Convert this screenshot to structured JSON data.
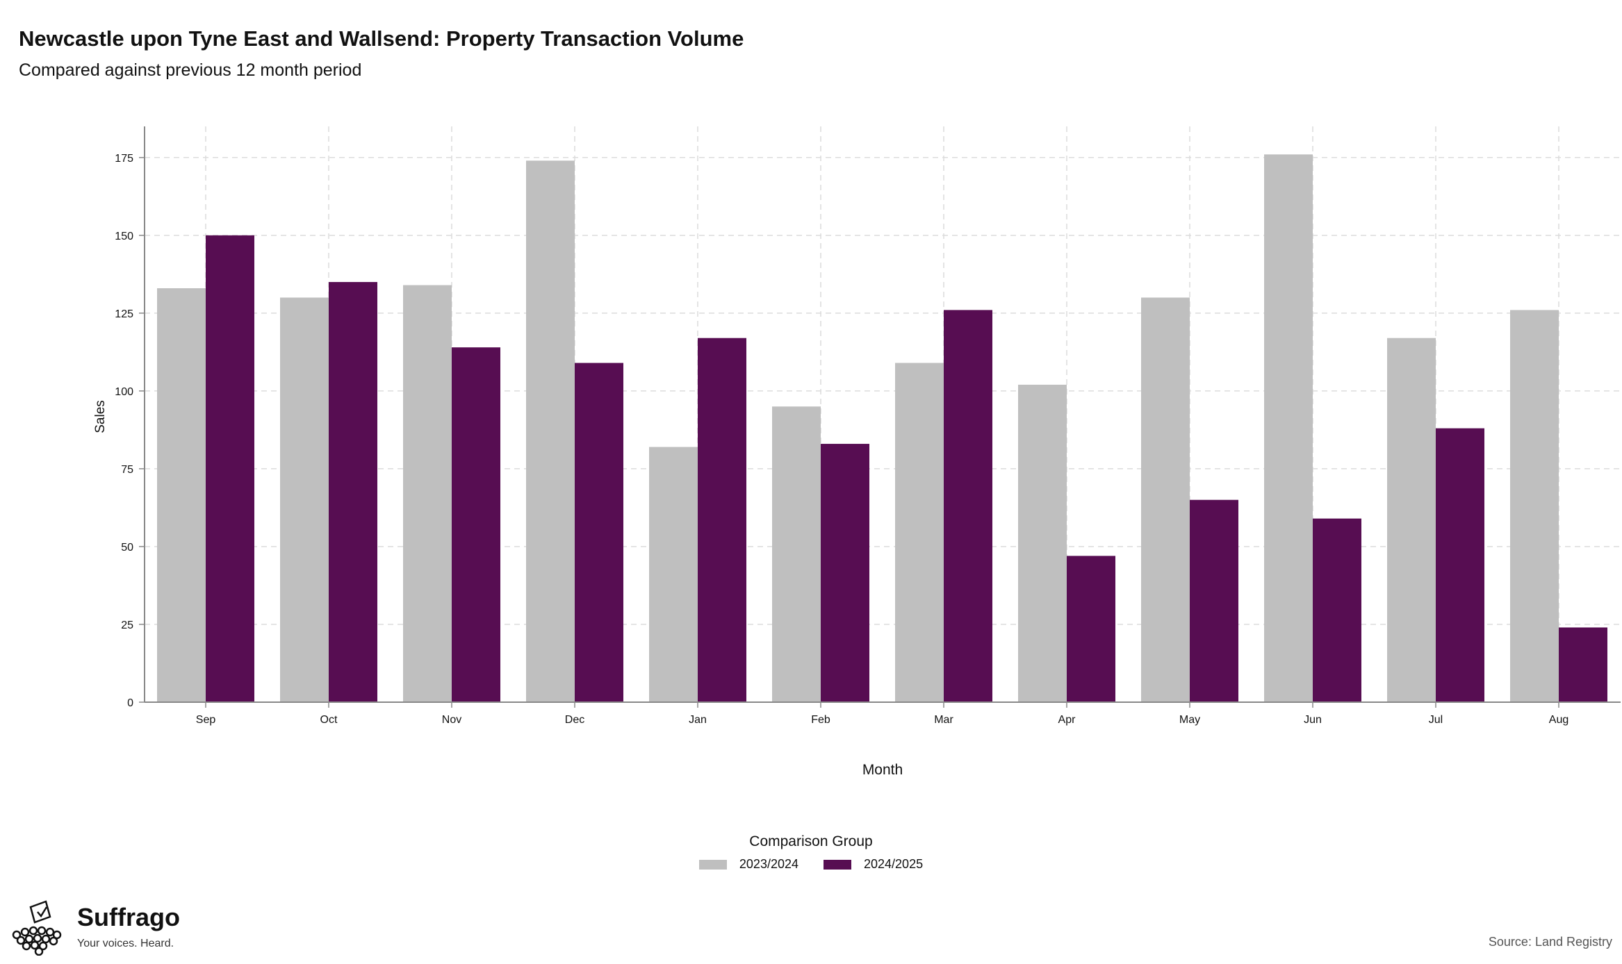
{
  "header": {
    "title": "Newcastle upon Tyne East and Wallsend: Property Transaction Volume",
    "subtitle": "Compared against previous 12 month period"
  },
  "legend": {
    "title": "Comparison Group",
    "items": [
      {
        "label": "2023/2024",
        "color": "#bfbfbf"
      },
      {
        "label": "2024/2025",
        "color": "#570d52"
      }
    ]
  },
  "branding": {
    "name": "Suffrago",
    "tagline": "Your voices. Heard.",
    "icon": "ballot-box-crowd-icon"
  },
  "footer": {
    "source": "Source: Land Registry"
  },
  "colors": {
    "grid": "#dcdcdc",
    "axis": "#888888",
    "series_2023_2024": "#bfbfbf",
    "series_2024_2025": "#570d52"
  },
  "chart_data": {
    "type": "bar",
    "title": "Newcastle upon Tyne East and Wallsend: Property Transaction Volume",
    "subtitle": "Compared against previous 12 month period",
    "xlabel": "Month",
    "ylabel": "Sales",
    "categories": [
      "Sep",
      "Oct",
      "Nov",
      "Dec",
      "Jan",
      "Feb",
      "Mar",
      "Apr",
      "May",
      "Jun",
      "Jul",
      "Aug"
    ],
    "series": [
      {
        "name": "2023/2024",
        "color": "#bfbfbf",
        "values": [
          133,
          130,
          134,
          174,
          82,
          95,
          109,
          102,
          130,
          176,
          117,
          126
        ]
      },
      {
        "name": "2024/2025",
        "color": "#570d52",
        "values": [
          150,
          135,
          114,
          109,
          117,
          83,
          126,
          47,
          65,
          59,
          88,
          24
        ]
      }
    ],
    "ylim": [
      0,
      185
    ],
    "yticks": [
      0,
      25,
      50,
      75,
      100,
      125,
      150,
      175
    ],
    "grid": true,
    "legend_position": "bottom"
  }
}
